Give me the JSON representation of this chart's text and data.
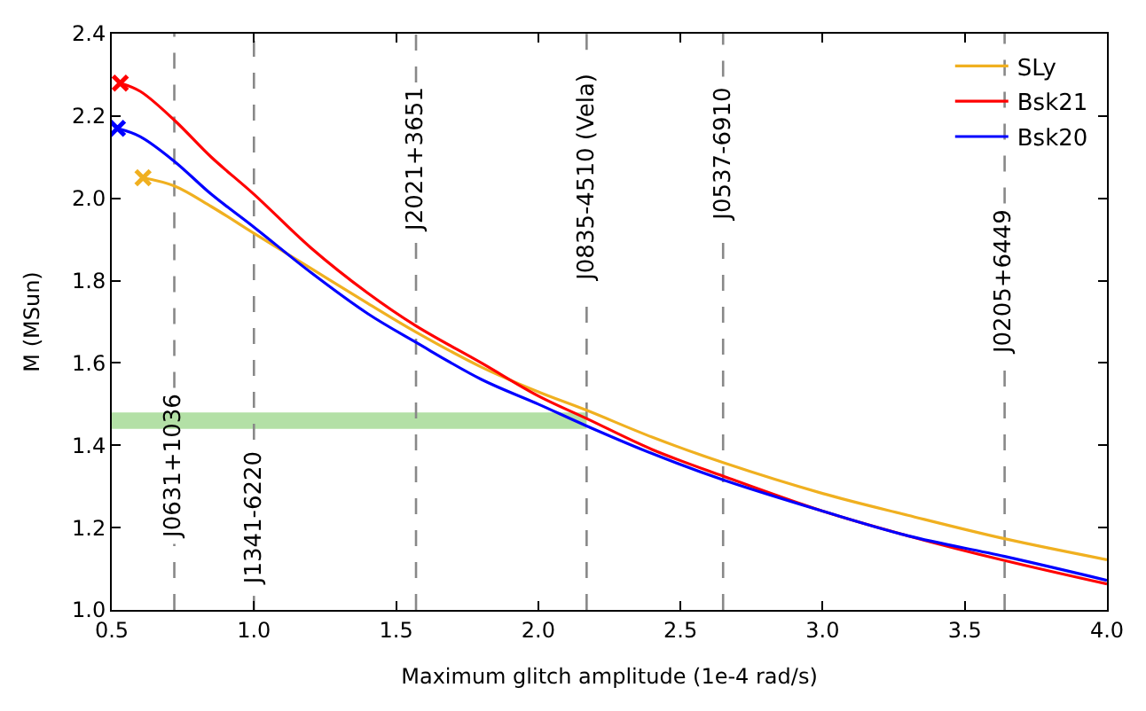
{
  "chart_data": {
    "type": "line",
    "xlabel": "Maximum glitch amplitude (1e-4 rad/s)",
    "ylabel": "M (MSun)",
    "xlim": [
      0.5,
      4.0
    ],
    "ylim": [
      1.0,
      2.4
    ],
    "xticks": [
      0.5,
      {
        "value": 1,
        "label": "1.0"
      },
      1.5,
      {
        "value": 2,
        "label": "2.0"
      },
      2.5,
      {
        "value": 3,
        "label": "3.0"
      },
      3.5,
      {
        "value": 4,
        "label": "4.0"
      }
    ],
    "yticks": [
      {
        "value": 1,
        "label": "1.0"
      },
      1.2,
      1.4,
      1.6,
      1.8,
      {
        "value": 2,
        "label": "2.0"
      },
      2.2,
      2.4
    ],
    "grid": false,
    "legend": "top right",
    "line_style": "solid",
    "marker": "none",
    "series": [
      {
        "name": "SLy",
        "color": "#f0b020",
        "x": [
          0.61,
          0.72,
          0.85,
          1.0,
          1.2,
          1.4,
          1.57,
          1.8,
          2.0,
          2.17,
          2.4,
          2.65,
          3.0,
          3.3,
          3.64,
          4.0
        ],
        "values": [
          2.05,
          2.03,
          1.98,
          1.915,
          1.83,
          1.745,
          1.675,
          1.59,
          1.53,
          1.485,
          1.42,
          1.358,
          1.283,
          1.23,
          1.173,
          1.122
        ]
      },
      {
        "name": "Bsk21",
        "color": "#ff0000",
        "x": [
          0.53,
          0.6,
          0.72,
          0.85,
          1.0,
          1.2,
          1.4,
          1.57,
          1.8,
          2.0,
          2.17,
          2.4,
          2.65,
          3.0,
          3.3,
          3.64,
          4.0
        ],
        "values": [
          2.28,
          2.26,
          2.19,
          2.1,
          2.01,
          1.88,
          1.77,
          1.69,
          1.6,
          1.52,
          1.465,
          1.39,
          1.325,
          1.24,
          1.18,
          1.12,
          1.063
        ]
      },
      {
        "name": "Bsk20",
        "color": "#0000ff",
        "x": [
          0.52,
          0.6,
          0.72,
          0.85,
          1.0,
          1.2,
          1.4,
          1.57,
          1.8,
          2.0,
          2.17,
          2.4,
          2.65,
          3.0,
          3.3,
          3.64,
          4.0
        ],
        "values": [
          2.17,
          2.15,
          2.09,
          2.01,
          1.93,
          1.82,
          1.72,
          1.65,
          1.56,
          1.5,
          1.447,
          1.38,
          1.316,
          1.24,
          1.18,
          1.13,
          1.072
        ]
      },
      {
        "type": "scatter",
        "marker": "cross",
        "color": "#f0b020",
        "x": [
          0.61
        ],
        "values": [
          2.05
        ]
      },
      {
        "type": "scatter",
        "marker": "cross",
        "color": "#ff0000",
        "x": [
          0.53
        ],
        "values": [
          2.28
        ]
      },
      {
        "type": "scatter",
        "marker": "cross",
        "color": "#0000ff",
        "x": [
          0.52
        ],
        "values": [
          2.17
        ]
      }
    ],
    "bands": [
      {
        "axis": "y",
        "from": 1.44,
        "to": 1.48,
        "color": "#b3e0a6"
      }
    ],
    "ref_lines": [
      {
        "axis": "x",
        "value": 0.72,
        "label": "J0631+1036",
        "color": "#888888",
        "line_style": "dashed"
      },
      {
        "axis": "x",
        "value": 1.0,
        "label": "J1341-6220",
        "color": "#888888",
        "line_style": "dashed"
      },
      {
        "axis": "x",
        "value": 1.57,
        "label": "J2021+3651",
        "color": "#888888",
        "line_style": "dashed"
      },
      {
        "axis": "x",
        "value": 2.17,
        "label": "J0835-4510 (Vela)",
        "color": "#888888",
        "line_style": "dashed"
      },
      {
        "axis": "x",
        "value": 2.65,
        "label": "J0537-6910",
        "color": "#888888",
        "line_style": "dashed"
      },
      {
        "axis": "x",
        "value": 3.64,
        "label": "J0205+6449",
        "color": "#888888",
        "line_style": "dashed"
      }
    ]
  }
}
